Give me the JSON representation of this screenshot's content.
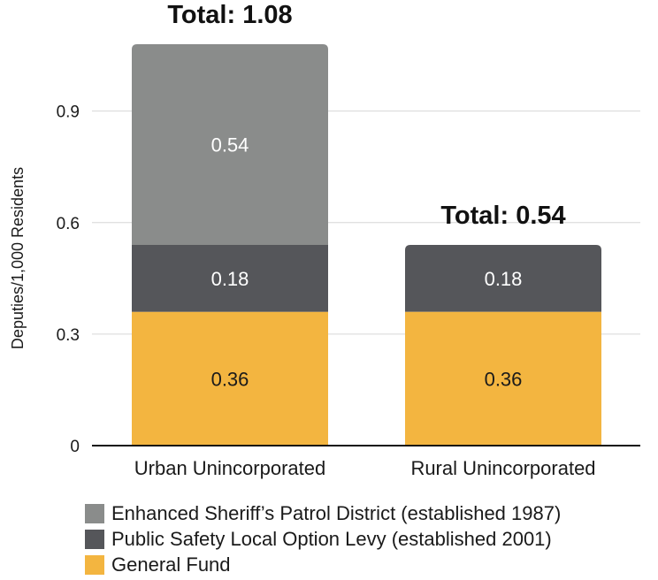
{
  "chart_data": {
    "type": "bar",
    "stacked": true,
    "ylabel": "Deputies/1,000 Residents",
    "xlabel": "",
    "ylim": [
      0,
      1.08
    ],
    "yticks": [
      "0",
      "0.3",
      "0.6",
      "0.9"
    ],
    "ytick_values": [
      0,
      0.3,
      0.6,
      0.9
    ],
    "grid": true,
    "legend_position": "bottom",
    "categories": [
      "Urban Unincorporated",
      "Rural Unincorporated"
    ],
    "series": [
      {
        "name": "General Fund",
        "color": "#F3B540",
        "label_color": "#1a1a1a",
        "values": [
          0.36,
          0.36
        ],
        "labels": [
          "0.36",
          "0.36"
        ]
      },
      {
        "name": "Public Safety Local Option Levy (established 2001)",
        "color": "#55565A",
        "label_color": "#ffffff",
        "values": [
          0.18,
          0.18
        ],
        "labels": [
          "0.18",
          "0.18"
        ]
      },
      {
        "name": "Enhanced Sheriff’s Patrol District (established 1987)",
        "color": "#8A8C8B",
        "label_color": "#ffffff",
        "values": [
          0.54,
          0
        ],
        "labels": [
          "0.54",
          ""
        ]
      }
    ],
    "totals": [
      {
        "value": 1.08,
        "label": "Total: 1.08"
      },
      {
        "value": 0.54,
        "label": "Total: 0.54"
      }
    ]
  }
}
